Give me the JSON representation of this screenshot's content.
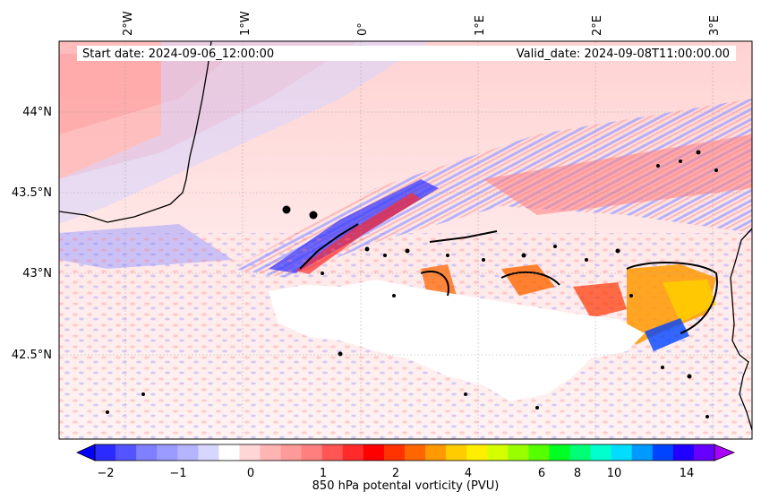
{
  "header": {
    "start_date": "Start date: 2024-09-06_12:00:00",
    "valid_date": "Valid_date: 2024-09-08T11:00:00.00"
  },
  "map": {
    "lon_labels": [
      "2°W",
      "1°W",
      "0°",
      "1°E",
      "2°E",
      "3°E"
    ],
    "lat_labels": [
      "44°N",
      "43.5°N",
      "43°N",
      "42.5°N"
    ],
    "markers": [
      "city-point-1",
      "city-point-2"
    ]
  },
  "colorbar": {
    "tick_labels": [
      "−2",
      "−1",
      "0",
      "1",
      "2",
      "4",
      "6",
      "8",
      "10",
      "14"
    ],
    "label": "850 hPa potental vorticity (PVU)",
    "colors": [
      "#0000ff",
      "#2b2bff",
      "#5555ff",
      "#7f7fff",
      "#9a9aff",
      "#b4b4ff",
      "#d6d6ff",
      "#ffffff",
      "#ffd6d6",
      "#ffb4b4",
      "#ff9a9a",
      "#ff7f7f",
      "#ff5555",
      "#ff2b2b",
      "#ff0000",
      "#ff3300",
      "#ff6600",
      "#ff9900",
      "#ffcc00",
      "#ffee00",
      "#d4ff00",
      "#99ff00",
      "#55ff00",
      "#00ff22",
      "#00ff77",
      "#00ffcc",
      "#00ddff",
      "#0099ff",
      "#0044ff",
      "#2200ff",
      "#6600ff",
      "#aa00ff"
    ]
  }
}
